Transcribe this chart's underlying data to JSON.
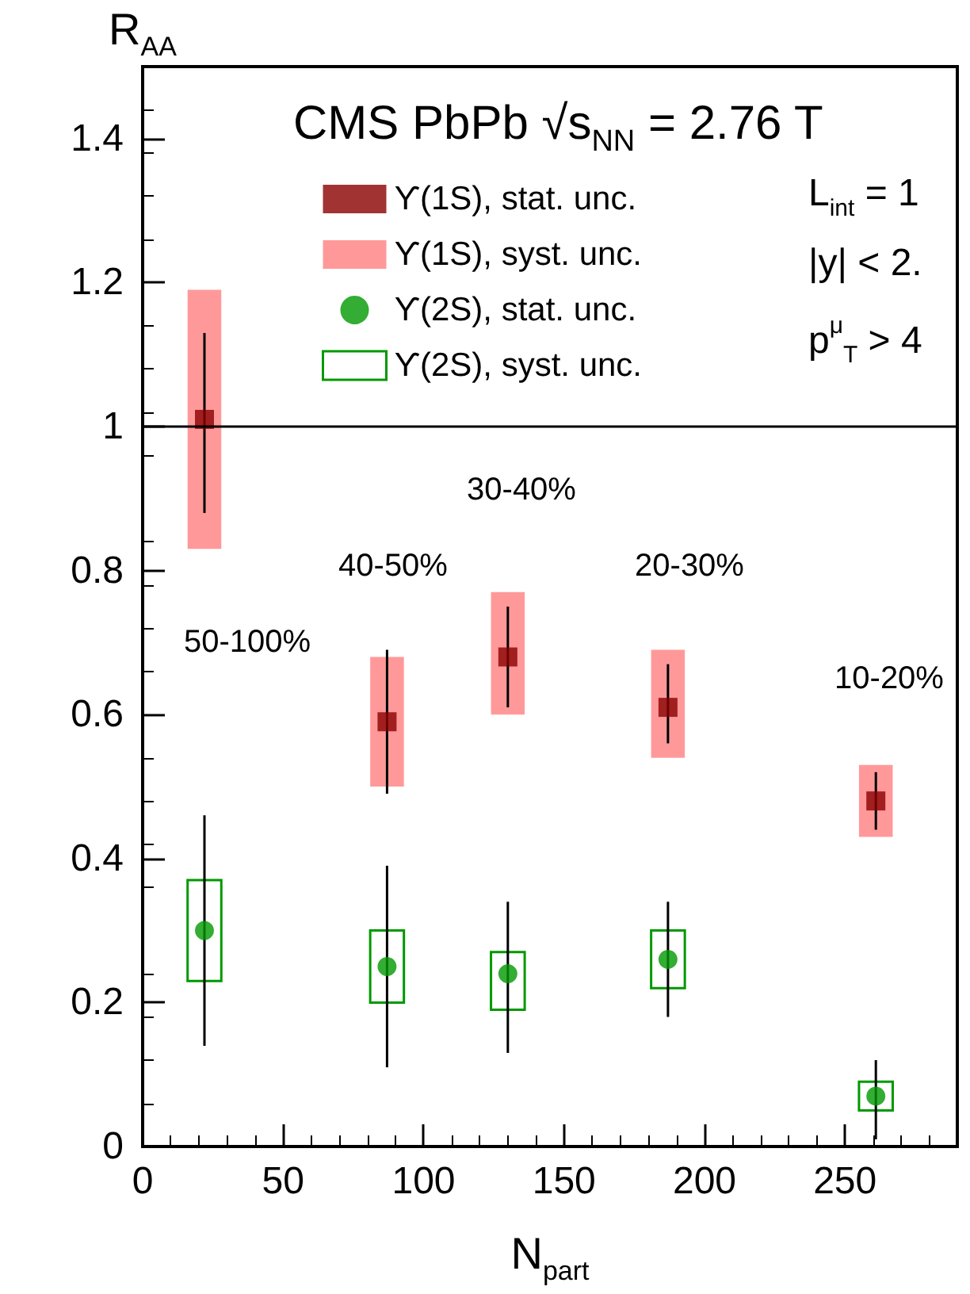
{
  "chart_data": {
    "type": "scatter",
    "title": "CMS PbPb √s$_{NN}$ = 2.76 T",
    "xlabel": "N$_{part}$",
    "ylabel": "R$_{AA}$",
    "x": [
      22,
      87,
      130,
      187,
      261
    ],
    "series": [
      {
        "name": "ϒ(1S), stat. unc.",
        "color": "#8b0000",
        "marker": "square",
        "values": [
          1.01,
          0.59,
          0.68,
          0.61,
          0.48
        ],
        "errors": [
          [
            0.88,
            1.13
          ],
          [
            0.49,
            0.69
          ],
          [
            0.61,
            0.75
          ],
          [
            0.56,
            0.67
          ],
          [
            0.44,
            0.52
          ]
        ]
      },
      {
        "name": "ϒ(1S), syst. unc.",
        "type": "bar",
        "color": "#ff9999",
        "base": [
          0.83,
          0.5,
          0.6,
          0.54,
          0.43
        ],
        "values": [
          0.36,
          0.18,
          0.17,
          0.15,
          0.1
        ]
      },
      {
        "name": "ϒ(2S), stat. unc.",
        "color": "#009900",
        "marker": "circle",
        "values": [
          0.3,
          0.25,
          0.24,
          0.26,
          0.07
        ],
        "errors": [
          [
            0.14,
            0.46
          ],
          [
            0.11,
            0.39
          ],
          [
            0.13,
            0.34
          ],
          [
            0.18,
            0.34
          ],
          [
            0.01,
            0.12
          ]
        ]
      },
      {
        "name": "ϒ(2S), syst. unc.",
        "type": "bar",
        "color": "#009900",
        "line_style": "solid",
        "base": [
          0.23,
          0.2,
          0.19,
          0.22,
          0.05
        ],
        "values": [
          0.14,
          0.1,
          0.08,
          0.08,
          0.04
        ]
      }
    ],
    "xlim": [
      0,
      290
    ],
    "xticks": [
      0,
      50,
      100,
      150,
      200,
      250
    ],
    "ylim": [
      0,
      1.5
    ],
    "yticks": [
      0,
      0.2,
      0.4,
      0.6,
      0.8,
      1,
      1.2,
      1.4
    ],
    "ref_lines": [
      {
        "axis": "y",
        "value": 1,
        "color": "#000000"
      }
    ],
    "legend": "top left",
    "grid": false,
    "annotations": [
      "50-100%",
      "40-50%",
      "30-40%",
      "20-30%",
      "10-20%",
      "L$_{int}$ = 1",
      "|y| < 2.",
      "p$^{μ}$$_{T}$ > 4"
    ]
  }
}
